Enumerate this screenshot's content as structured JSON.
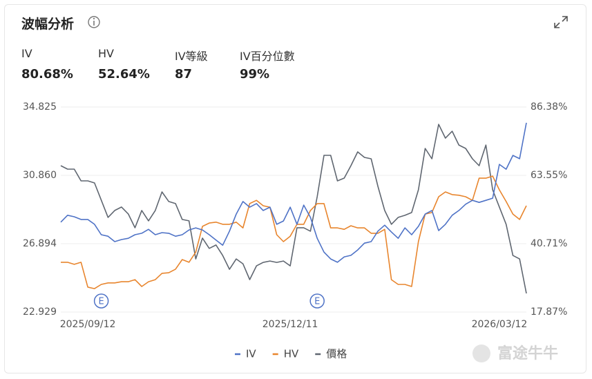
{
  "header": {
    "title": "波幅分析"
  },
  "stats": [
    {
      "label": "IV",
      "value": "80.68%"
    },
    {
      "label": "HV",
      "value": "52.64%"
    },
    {
      "label": "IV等級",
      "value": "87"
    },
    {
      "label": "IV百分位數",
      "value": "99%"
    }
  ],
  "watermark": "富途牛牛",
  "chart_data": {
    "type": "line",
    "categories": [
      null,
      null,
      null,
      null,
      "2025/09/12",
      null,
      null,
      null,
      null,
      null,
      null,
      null,
      null,
      null,
      null,
      null,
      null,
      null,
      null,
      null,
      null,
      null,
      null,
      null,
      null,
      null,
      null,
      null,
      null,
      null,
      null,
      null,
      null,
      null,
      "2025/12/11",
      null,
      null,
      null,
      null,
      null,
      null,
      null,
      null,
      null,
      null,
      null,
      null,
      null,
      null,
      null,
      null,
      null,
      null,
      null,
      null,
      null,
      null,
      null,
      null,
      null,
      null,
      null,
      null,
      null,
      null,
      "2026/03/12",
      null,
      null,
      null,
      null
    ],
    "series": [
      {
        "name": "IV",
        "color": "#4e72c6",
        "axis": "y2",
        "values": [
          47.9,
          50.2,
          49.7,
          48.8,
          48.8,
          47.2,
          43.7,
          43.2,
          41.4,
          42.1,
          42.5,
          43.7,
          44.2,
          45.5,
          43.7,
          44.4,
          44.2,
          43.2,
          43.7,
          45.3,
          46.0,
          45.3,
          43.7,
          41.9,
          40.2,
          44.9,
          50.6,
          54.8,
          52.9,
          54.1,
          51.8,
          52.9,
          47.2,
          48.3,
          52.9,
          47.2,
          53.6,
          49.5,
          42.5,
          37.9,
          35.6,
          34.5,
          36.3,
          36.8,
          38.6,
          40.9,
          41.4,
          44.9,
          46.9,
          44.6,
          42.5,
          46.0,
          43.7,
          46.5,
          50.6,
          51.8,
          45.1,
          47.2,
          50.2,
          51.8,
          53.9,
          55.2,
          54.5,
          55.2,
          55.9,
          67.2,
          65.6,
          70.2,
          69.1,
          81.1
        ]
      },
      {
        "name": "HV",
        "color": "#e8852d",
        "axis": "y2",
        "values": [
          34.5,
          34.5,
          33.8,
          34.5,
          26.2,
          25.7,
          27.1,
          27.6,
          27.6,
          28.0,
          28.0,
          28.7,
          26.4,
          28.0,
          28.7,
          30.8,
          31.0,
          32.2,
          35.4,
          34.5,
          37.9,
          46.5,
          47.6,
          47.9,
          47.2,
          47.2,
          47.9,
          46.0,
          54.1,
          55.2,
          53.4,
          52.9,
          43.7,
          41.4,
          43.2,
          47.2,
          47.2,
          51.8,
          54.1,
          54.1,
          46.0,
          46.0,
          45.5,
          46.7,
          46.0,
          46.0,
          44.2,
          44.2,
          45.5,
          28.7,
          27.1,
          27.1,
          26.4,
          41.4,
          50.6,
          51.1,
          56.4,
          58.0,
          57.1,
          56.9,
          56.4,
          55.2,
          62.6,
          62.6,
          63.3,
          58.7,
          54.8,
          50.6,
          48.8,
          53.4
        ]
      },
      {
        "name": "價格",
        "color": "#5f6670",
        "values": [
          31.42,
          31.22,
          31.22,
          30.54,
          30.54,
          30.42,
          29.42,
          28.42,
          28.82,
          29.02,
          28.62,
          27.82,
          28.82,
          28.22,
          28.82,
          29.9,
          29.34,
          29.22,
          28.3,
          28.22,
          26.01,
          27.22,
          26.62,
          26.82,
          26.21,
          25.41,
          26.01,
          25.73,
          24.81,
          25.61,
          25.81,
          25.89,
          25.81,
          25.89,
          25.61,
          27.82,
          27.82,
          27.62,
          29.62,
          32.02,
          32.02,
          30.54,
          30.7,
          31.42,
          32.22,
          31.9,
          31.82,
          30.22,
          28.82,
          28.02,
          28.42,
          28.54,
          28.7,
          30.02,
          32.42,
          31.82,
          33.82,
          33.02,
          33.42,
          32.62,
          32.42,
          31.82,
          31.42,
          32.62,
          30.02,
          29.02,
          28.02,
          26.21,
          26.01,
          24.01
        ]
      }
    ],
    "ylim": [
      22.929,
      34.825
    ],
    "yticks": [
      22.929,
      26.894,
      {
        "value": 30.86,
        "label": "30.860"
      },
      34.825
    ],
    "y2lim": [
      17.87,
      86.38
    ],
    "y2ticks": [
      {
        "value": 17.87,
        "label": "17.87%"
      },
      {
        "value": 40.71,
        "label": "40.71%"
      },
      {
        "value": 63.55,
        "label": "63.55%"
      },
      {
        "value": 86.38,
        "label": "86.38%"
      }
    ],
    "annotations": [
      {
        "index": 6,
        "text": "E"
      },
      {
        "index": 38,
        "text": "E"
      }
    ],
    "grid": true,
    "legend": "bottom"
  }
}
